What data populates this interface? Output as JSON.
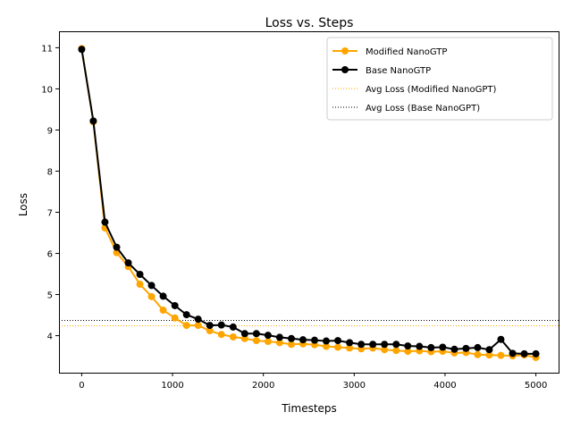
{
  "chart_data": {
    "type": "line",
    "title": "Loss vs. Steps",
    "xlabel": "Timesteps",
    "ylabel": "Loss",
    "xlim": [
      -250,
      5250
    ],
    "ylim": [
      3.1,
      11.4
    ],
    "xticks": [
      0,
      1000,
      2000,
      3000,
      4000,
      5000
    ],
    "yticks": [
      4,
      5,
      6,
      7,
      8,
      9,
      10,
      11
    ],
    "grid": false,
    "legend_position": "upper right",
    "x": [
      0,
      128,
      256,
      385,
      513,
      641,
      769,
      897,
      1026,
      1154,
      1282,
      1410,
      1538,
      1667,
      1795,
      1923,
      2051,
      2179,
      2308,
      2436,
      2564,
      2692,
      2820,
      2949,
      3077,
      3205,
      3333,
      3462,
      3590,
      3718,
      3846,
      3974,
      4103,
      4231,
      4359,
      4487,
      4615,
      4744,
      4872,
      5000
    ],
    "series": [
      {
        "name": "Modified NanoGTP",
        "color": "#ffa500",
        "style": "solid-marker",
        "values": [
          10.98,
          9.2,
          6.62,
          6.02,
          5.68,
          5.25,
          4.95,
          4.62,
          4.43,
          4.25,
          4.25,
          4.12,
          4.03,
          3.97,
          3.93,
          3.88,
          3.86,
          3.83,
          3.79,
          3.8,
          3.78,
          3.74,
          3.72,
          3.7,
          3.68,
          3.7,
          3.66,
          3.64,
          3.62,
          3.63,
          3.61,
          3.62,
          3.58,
          3.59,
          3.54,
          3.53,
          3.52,
          3.51,
          3.53,
          3.47
        ]
      },
      {
        "name": "Base NanoGTP",
        "color": "#000000",
        "style": "solid-marker",
        "values": [
          10.96,
          9.22,
          6.76,
          6.15,
          5.77,
          5.49,
          5.22,
          4.96,
          4.73,
          4.51,
          4.4,
          4.25,
          4.26,
          4.21,
          4.05,
          4.05,
          4.01,
          3.96,
          3.93,
          3.9,
          3.89,
          3.87,
          3.88,
          3.83,
          3.79,
          3.79,
          3.79,
          3.79,
          3.75,
          3.74,
          3.71,
          3.72,
          3.67,
          3.69,
          3.71,
          3.66,
          3.91,
          3.57,
          3.56,
          3.56
        ]
      },
      {
        "name": "Avg Loss (Modified NanoGPT)",
        "color": "#ffa500",
        "style": "dotted-hline",
        "value": 4.24
      },
      {
        "name": "Avg Loss (Base NanoGPT)",
        "color": "#000000",
        "style": "dotted-hline",
        "value": 4.37
      }
    ]
  }
}
